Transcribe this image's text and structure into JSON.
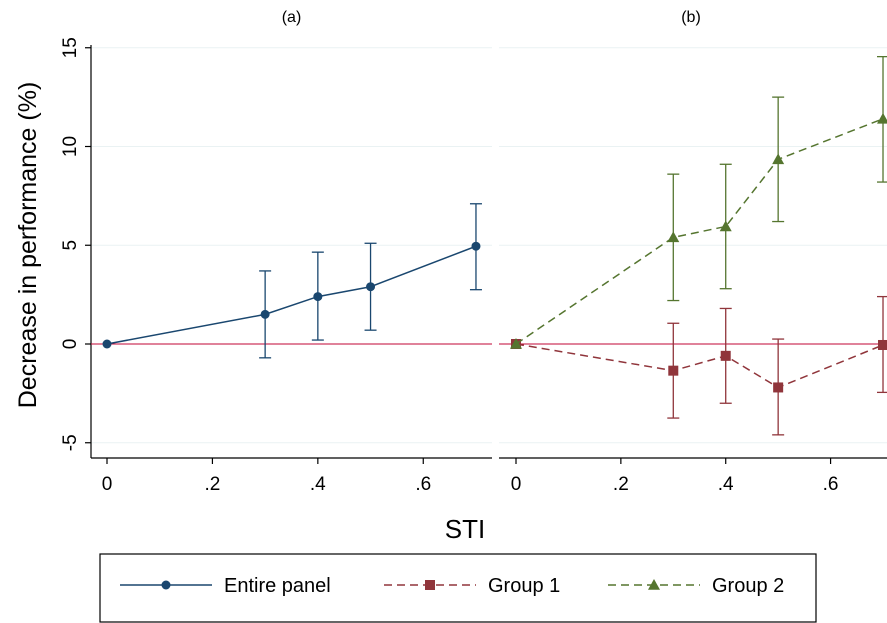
{
  "colors": {
    "entire": "#1a476f",
    "group1": "#90353b",
    "group2": "#55752f",
    "zero_line": "#c10534",
    "grid": "#eaf2f3",
    "axis": "#000000"
  },
  "chart_data": {
    "type": "line",
    "ylabel": "Decrease in performance (%)",
    "xlabel": "STI",
    "ylim": [
      -6,
      15.5
    ],
    "xlim": [
      -0.03,
      0.7
    ],
    "y_ticks": [
      -5,
      0,
      5,
      10,
      15
    ],
    "y_tick_labels": [
      "-5",
      "0",
      "5",
      "10",
      "15"
    ],
    "x_ticks": [
      0,
      0.2,
      0.4,
      0.6
    ],
    "x_tick_labels": [
      "0",
      ".2",
      ".4",
      ".6"
    ],
    "grid": true,
    "reference_line_y": 0,
    "legend_position": "bottom",
    "panels": [
      {
        "title": "(a)",
        "series": [
          {
            "name": "Entire panel",
            "color_key": "entire",
            "marker": "circle",
            "dash": "solid",
            "x": [
              0,
              0.3,
              0.4,
              0.5,
              0.7
            ],
            "y": [
              0,
              1.5,
              2.4,
              2.9,
              4.95
            ],
            "ci_low": [
              0,
              -0.7,
              0.2,
              0.7,
              2.75
            ],
            "ci_high": [
              0,
              3.7,
              4.65,
              5.1,
              7.1
            ]
          }
        ]
      },
      {
        "title": "(b)",
        "series": [
          {
            "name": "Group 1",
            "color_key": "group1",
            "marker": "square",
            "dash": "dashed",
            "x": [
              0,
              0.3,
              0.4,
              0.5,
              0.7
            ],
            "y": [
              0,
              -1.35,
              -0.6,
              -2.2,
              -0.05
            ],
            "ci_low": [
              0,
              -3.75,
              -3.0,
              -4.6,
              -2.45
            ],
            "ci_high": [
              0,
              1.05,
              1.8,
              0.25,
              2.4
            ]
          },
          {
            "name": "Group 2",
            "color_key": "group2",
            "marker": "triangle",
            "dash": "dashed",
            "x": [
              0,
              0.3,
              0.4,
              0.5,
              0.7
            ],
            "y": [
              0,
              5.4,
              5.95,
              9.35,
              11.4
            ],
            "ci_low": [
              0,
              2.2,
              2.8,
              6.2,
              8.2
            ],
            "ci_high": [
              0,
              8.6,
              9.1,
              12.5,
              14.55
            ]
          }
        ]
      }
    ]
  }
}
